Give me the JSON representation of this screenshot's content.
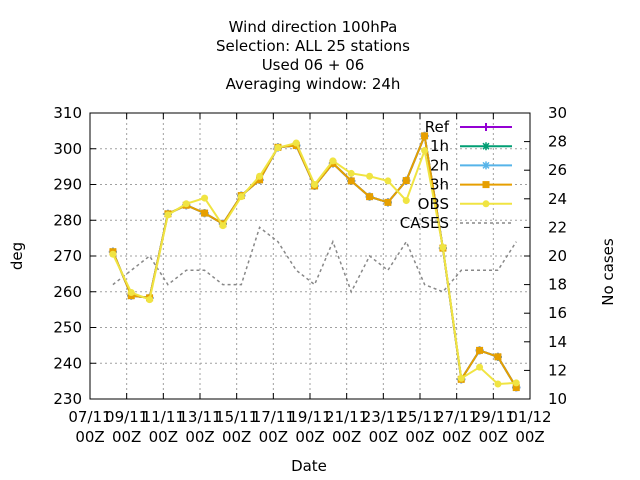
{
  "chart_data": {
    "type": "line",
    "title_lines": [
      "Wind direction 100hPa",
      "Selection: ALL      25 stations",
      "Used  06 + 06",
      "Averaging window: 24h"
    ],
    "xlabel": "Date",
    "ylabel": "deg",
    "y2label": "No cases",
    "x_ticks": [
      {
        "line1": "07/11",
        "line2": "00Z"
      },
      {
        "line1": "09/11",
        "line2": "00Z"
      },
      {
        "line1": "11/11",
        "line2": "00Z"
      },
      {
        "line1": "13/11",
        "line2": "00Z"
      },
      {
        "line1": "15/11",
        "line2": "00Z"
      },
      {
        "line1": "17/11",
        "line2": "00Z"
      },
      {
        "line1": "19/11",
        "line2": "00Z"
      },
      {
        "line1": "21/11",
        "line2": "00Z"
      },
      {
        "line1": "23/11",
        "line2": "00Z"
      },
      {
        "line1": "25/11",
        "line2": "00Z"
      },
      {
        "line1": "27/11",
        "line2": "00Z"
      },
      {
        "line1": "29/11",
        "line2": "00Z"
      },
      {
        "line1": "01/12",
        "line2": "00Z"
      }
    ],
    "x_range_days": [
      0,
      24
    ],
    "ylim": [
      230,
      310
    ],
    "y_ticks": [
      230,
      240,
      250,
      260,
      270,
      280,
      290,
      300,
      310
    ],
    "y2lim": [
      10,
      30
    ],
    "y2_ticks": [
      10,
      12,
      14,
      16,
      18,
      20,
      22,
      24,
      26,
      28,
      30
    ],
    "grid": true,
    "legend_position": "top-right",
    "x_days": [
      1.25,
      2.25,
      3.25,
      4.25,
      5.25,
      6.25,
      7.25,
      8.25,
      9.25,
      10.25,
      11.25,
      12.25,
      13.25,
      14.25,
      15.25,
      16.25,
      17.25,
      18.25,
      19.25,
      20.25,
      21.25,
      22.25,
      23.25
    ],
    "series": [
      {
        "name": "Ref",
        "color": "#9400d3",
        "axis": "y",
        "marker": "plus",
        "values": [
          271.2,
          258.9,
          258.3,
          281.8,
          284.2,
          282.0,
          279.0,
          286.9,
          291.3,
          300.4,
          300.9,
          289.6,
          295.9,
          291.0,
          286.6,
          285.0,
          291.1,
          303.6,
          272.2,
          235.5,
          243.6,
          241.8,
          233.2
        ]
      },
      {
        "name": "1h",
        "color": "#009e73",
        "axis": "y",
        "marker": "x",
        "values": [
          271.2,
          258.9,
          258.3,
          281.8,
          284.2,
          282.0,
          279.0,
          286.9,
          291.3,
          300.4,
          300.9,
          289.6,
          295.9,
          291.0,
          286.6,
          285.0,
          291.1,
          303.6,
          272.2,
          235.5,
          243.6,
          241.8,
          233.2
        ]
      },
      {
        "name": "2h",
        "color": "#56b4e9",
        "axis": "y",
        "marker": "star",
        "values": [
          271.2,
          258.9,
          258.3,
          281.8,
          284.2,
          282.0,
          279.0,
          286.9,
          291.3,
          300.4,
          300.9,
          289.6,
          295.9,
          291.0,
          286.6,
          285.0,
          291.1,
          303.6,
          272.2,
          235.5,
          243.6,
          241.8,
          233.2
        ]
      },
      {
        "name": "3h",
        "color": "#e69f00",
        "axis": "y",
        "marker": "box",
        "values": [
          271.2,
          258.9,
          258.3,
          281.8,
          284.2,
          282.0,
          279.0,
          286.9,
          291.3,
          300.4,
          300.9,
          289.6,
          295.9,
          291.0,
          286.6,
          285.0,
          291.1,
          303.6,
          272.2,
          235.5,
          243.6,
          241.8,
          233.2
        ]
      },
      {
        "name": "OBS",
        "color": "#f0e442",
        "axis": "y",
        "marker": "circle",
        "values": [
          270.5,
          259.8,
          257.8,
          281.5,
          284.6,
          286.2,
          278.5,
          286.6,
          292.3,
          300.3,
          301.6,
          290.0,
          296.6,
          293.1,
          292.3,
          291.0,
          285.5,
          299.5,
          272.4,
          235.8,
          238.9,
          234.2,
          234.5
        ]
      },
      {
        "name": "CASES",
        "color": "#888888",
        "axis": "y2",
        "marker": "none",
        "dashed": true,
        "values": [
          18,
          19,
          20,
          18,
          19,
          19,
          18,
          18,
          22,
          21,
          19,
          18,
          21,
          17.5,
          20,
          19,
          21,
          18,
          17.5,
          19,
          19,
          19,
          21
        ]
      }
    ]
  }
}
